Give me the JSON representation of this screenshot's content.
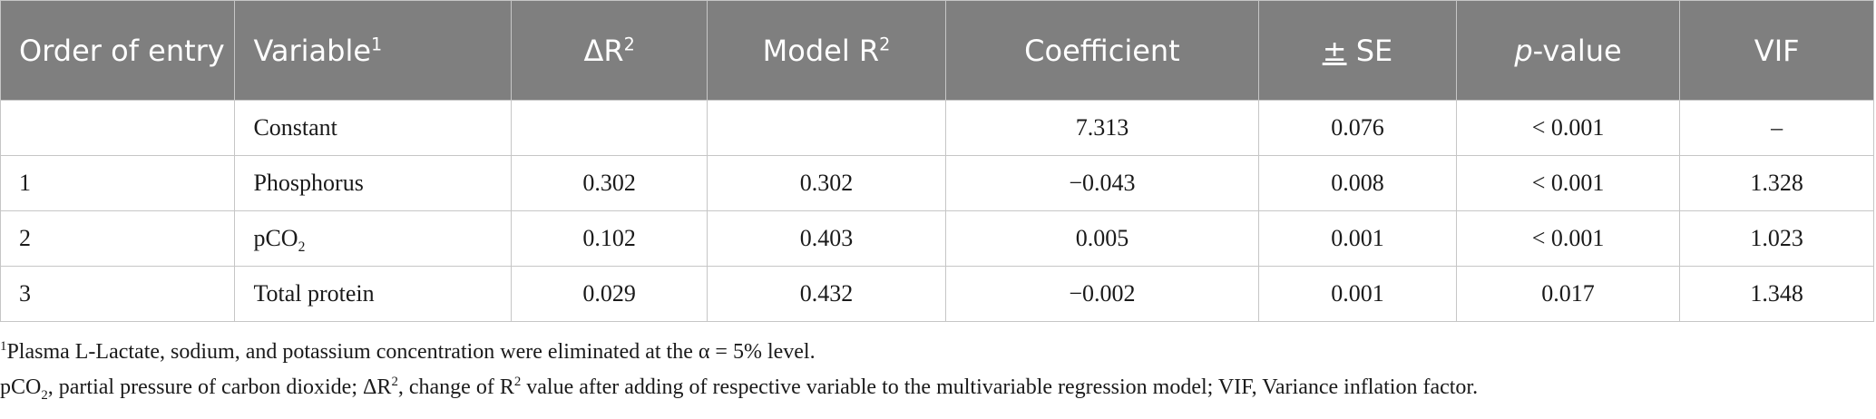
{
  "header": {
    "order": "Order of entry",
    "variable": "Variable",
    "variable_sup": "1",
    "delta_r2": "ΔR",
    "delta_r2_sup": "2",
    "model_r2": "Model R",
    "model_r2_sup": "2",
    "coefficient": "Coefficient",
    "se_pm": "±",
    "se": " SE",
    "p_italic": "p",
    "p_rest": "-value",
    "vif": "VIF"
  },
  "rows": [
    {
      "order": "",
      "variable": "Constant",
      "variable_sub": "",
      "delta_r2": "",
      "model_r2": "",
      "coefficient": "7.313",
      "se": "0.076",
      "p_value": "< 0.001",
      "vif": "–"
    },
    {
      "order": "1",
      "variable": "Phosphorus",
      "variable_sub": "",
      "delta_r2": "0.302",
      "model_r2": "0.302",
      "coefficient": "−0.043",
      "se": "0.008",
      "p_value": "< 0.001",
      "vif": "1.328"
    },
    {
      "order": "2",
      "variable": "pCO",
      "variable_sub": "2",
      "delta_r2": "0.102",
      "model_r2": "0.403",
      "coefficient": "0.005",
      "se": "0.001",
      "p_value": "< 0.001",
      "vif": "1.023"
    },
    {
      "order": "3",
      "variable": "Total protein",
      "variable_sub": "",
      "delta_r2": "0.029",
      "model_r2": "0.432",
      "coefficient": "−0.002",
      "se": "0.001",
      "p_value": "0.017",
      "vif": "1.348"
    }
  ],
  "footnotes": {
    "note1_sup": "1",
    "note1": "Plasma L-Lactate, sodium, and potassium concentration were eliminated at the α = 5% level.",
    "note2_a": "pCO",
    "note2_a_sub": "2",
    "note2_b": ", partial pressure of carbon dioxide; ΔR",
    "note2_b_sup": "2",
    "note2_c": ", change of R",
    "note2_c_sup": "2",
    "note2_d": " value after adding of respective variable to the multivariable regression model; VIF, Variance inflation factor."
  }
}
